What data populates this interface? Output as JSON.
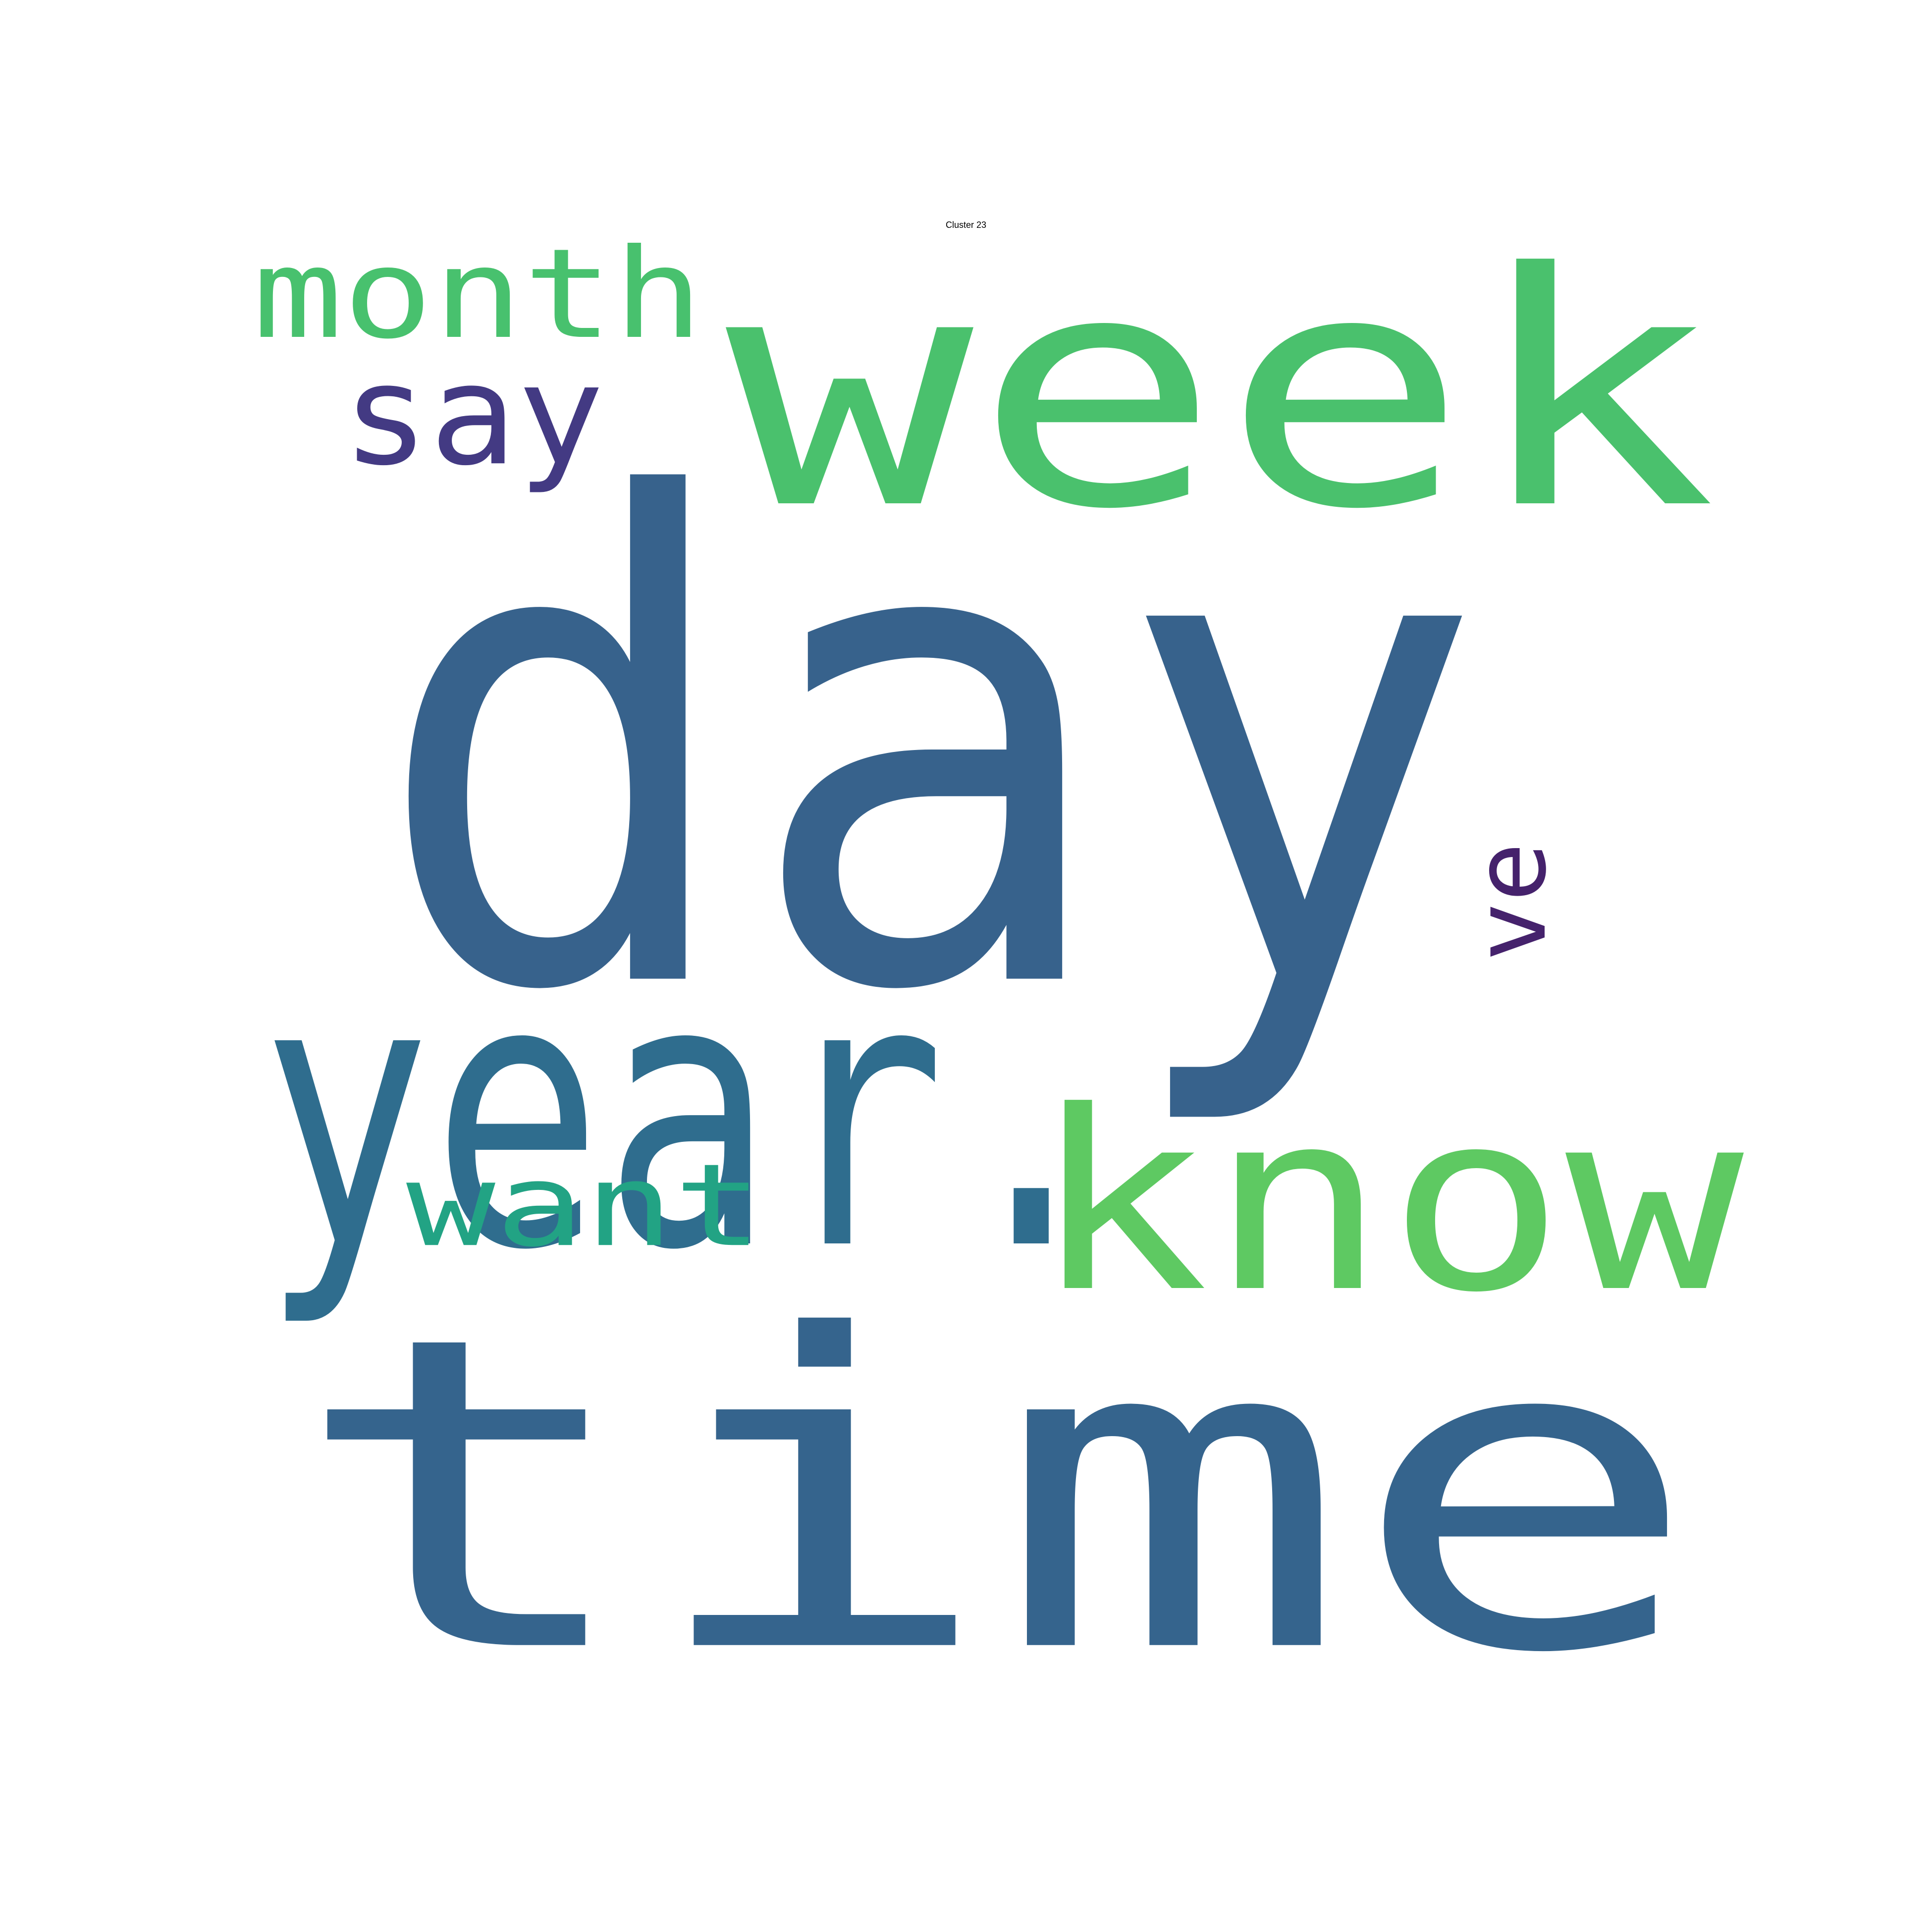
{
  "title": "Cluster 23",
  "words": [
    {
      "text": "day",
      "color": "#37628c",
      "rotation": 0
    },
    {
      "text": "time",
      "color": "#35648d",
      "rotation": 0
    },
    {
      "text": "week",
      "color": "#4ac16d",
      "rotation": 0
    },
    {
      "text": "year.",
      "color": "#2f6d8e",
      "rotation": 0
    },
    {
      "text": "know",
      "color": "#5ec962",
      "rotation": 0
    },
    {
      "text": "month",
      "color": "#48c16e",
      "rotation": 0
    },
    {
      "text": "say",
      "color": "#433a83",
      "rotation": 0
    },
    {
      "text": "want",
      "color": "#22a384",
      "rotation": 0
    },
    {
      "text": "ve",
      "color": "#45226c",
      "rotation": -90
    }
  ]
}
